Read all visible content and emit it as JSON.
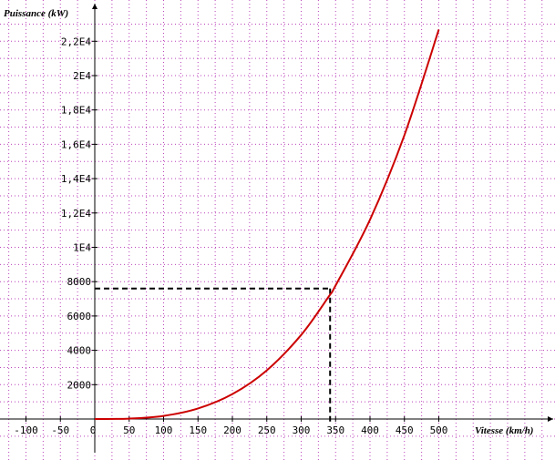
{
  "chart_data": {
    "type": "line",
    "xlabel": "Vitesse (km/h)",
    "ylabel": "Puissance (kW)",
    "xlim": [
      -130,
      660
    ],
    "ylim": [
      -1900,
      23000
    ],
    "x_ticks": [
      -100,
      -50,
      0,
      50,
      100,
      150,
      200,
      250,
      300,
      350,
      400,
      450,
      500
    ],
    "x_tick_labels": [
      "-100",
      "-50",
      "0",
      "50",
      "100",
      "150",
      "200",
      "250",
      "300",
      "350",
      "400",
      "450",
      "500"
    ],
    "y_ticks": [
      2000,
      4000,
      6000,
      8000,
      10000,
      12000,
      14000,
      16000,
      18000,
      20000,
      22000
    ],
    "y_tick_labels": [
      "2000",
      "4000",
      "6000",
      "8000",
      "1E4",
      "1,2E4",
      "1,4E4",
      "1,6E4",
      "1,8E4",
      "2E4",
      "2,2E4"
    ],
    "grid": true,
    "grid_step_x": 25,
    "grid_step_y": 1000,
    "series": [
      {
        "color": "#cc0000",
        "points": [
          [
            0,
            0
          ],
          [
            50,
            23
          ],
          [
            100,
            181
          ],
          [
            150,
            612
          ],
          [
            200,
            1451
          ],
          [
            250,
            2834
          ],
          [
            300,
            4898
          ],
          [
            340,
            7130
          ],
          [
            350,
            7777
          ],
          [
            400,
            11610
          ],
          [
            450,
            16530
          ],
          [
            500,
            22680
          ]
        ]
      }
    ],
    "annotation": {
      "type": "dashed-projection",
      "x": 342,
      "y": 7600,
      "color": "#000000"
    },
    "colors": {
      "grid": "#bb44bb",
      "axis": "#000000",
      "curve": "#cc0000"
    }
  }
}
